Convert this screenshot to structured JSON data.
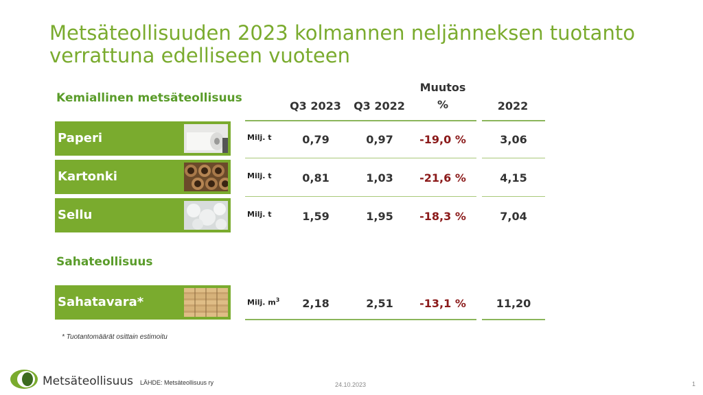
{
  "title": {
    "line1": "Metsäteollisuuden 2023 kolmannen neljänneksen tuotanto",
    "line2": "verrattuna edelliseen vuoteen"
  },
  "sections": {
    "chemical": "Kemiallinen metsäteollisuus",
    "sawmill": "Sahateollisuus"
  },
  "columns": {
    "q3_2023": "Q3 2023",
    "q3_2022": "Q3 2022",
    "change_line1": "Muutos",
    "change_line2": "%",
    "year_2022": "2022"
  },
  "rows": [
    {
      "label": "Paperi",
      "image": "paper-roll-image",
      "unit": "Milj. t",
      "q3_2023": "0,79",
      "q3_2022": "0,97",
      "change": "-19,0 %",
      "year_2022": "3,06"
    },
    {
      "label": "Kartonki",
      "image": "cardboard-tubes-image",
      "unit": "Milj. t",
      "q3_2023": "0,81",
      "q3_2022": "1,03",
      "change": "-21,6 %",
      "year_2022": "4,15"
    },
    {
      "label": "Sellu",
      "image": "pulp-image",
      "unit": "Milj. t",
      "q3_2023": "1,59",
      "q3_2022": "1,95",
      "change": "-18,3 %",
      "year_2022": "7,04"
    },
    {
      "label": "Sahatavara*",
      "image": "lumber-stack-image",
      "unit": "Milj. m",
      "unit_sup": "3",
      "q3_2023": "2,18",
      "q3_2022": "2,51",
      "change": "-13,1 %",
      "year_2022": "11,20"
    }
  ],
  "footnote": "* Tuotantomäärät osittain estimoitu",
  "footer": {
    "logo_text": "Metsäteollisuus",
    "source": "LÄHDE:  Metsäteollisuus ry",
    "date": "24.10.2023",
    "page": "1"
  },
  "colors": {
    "accent": "#7aab2e",
    "negative": "#8b1a1a"
  }
}
